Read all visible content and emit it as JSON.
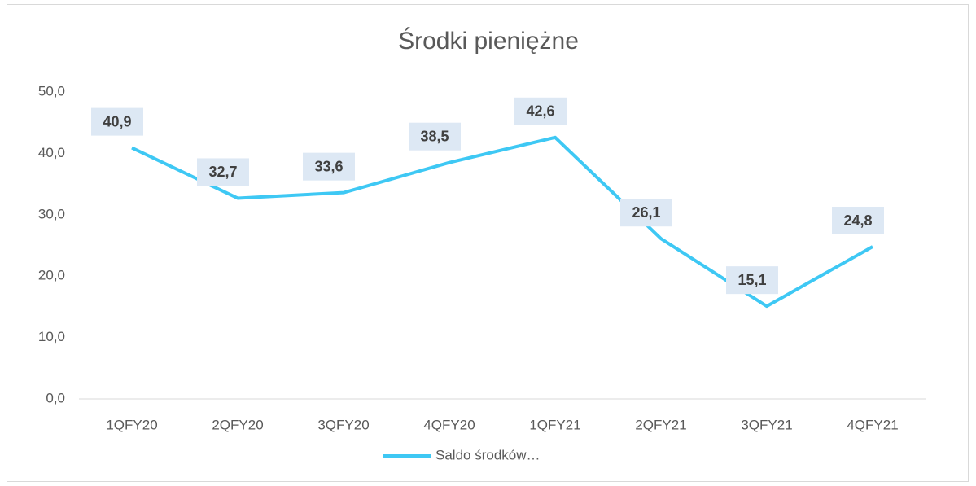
{
  "chart_data": {
    "type": "line",
    "title": "Środki pieniężne",
    "categories": [
      "1QFY20",
      "2QFY20",
      "3QFY20",
      "4QFY20",
      "1QFY21",
      "2QFY21",
      "3QFY21",
      "4QFY21"
    ],
    "series": [
      {
        "name": "Saldo środków…",
        "color": "#3ec8f4",
        "values": [
          40.9,
          32.7,
          33.6,
          38.5,
          42.6,
          26.1,
          15.1,
          24.8
        ],
        "value_labels": [
          "40,9",
          "32,7",
          "33,6",
          "38,5",
          "42,6",
          "26,1",
          "15,1",
          "24,8"
        ]
      }
    ],
    "ylim": [
      0,
      50
    ],
    "yticks": [
      {
        "value": 0,
        "label": "0,0"
      },
      {
        "value": 10,
        "label": "10,0"
      },
      {
        "value": 20,
        "label": "20,0"
      },
      {
        "value": 30,
        "label": "30,0"
      },
      {
        "value": 40,
        "label": "40,0"
      },
      {
        "value": 50,
        "label": "50,0"
      }
    ],
    "grid": false,
    "legend": "bottom"
  }
}
